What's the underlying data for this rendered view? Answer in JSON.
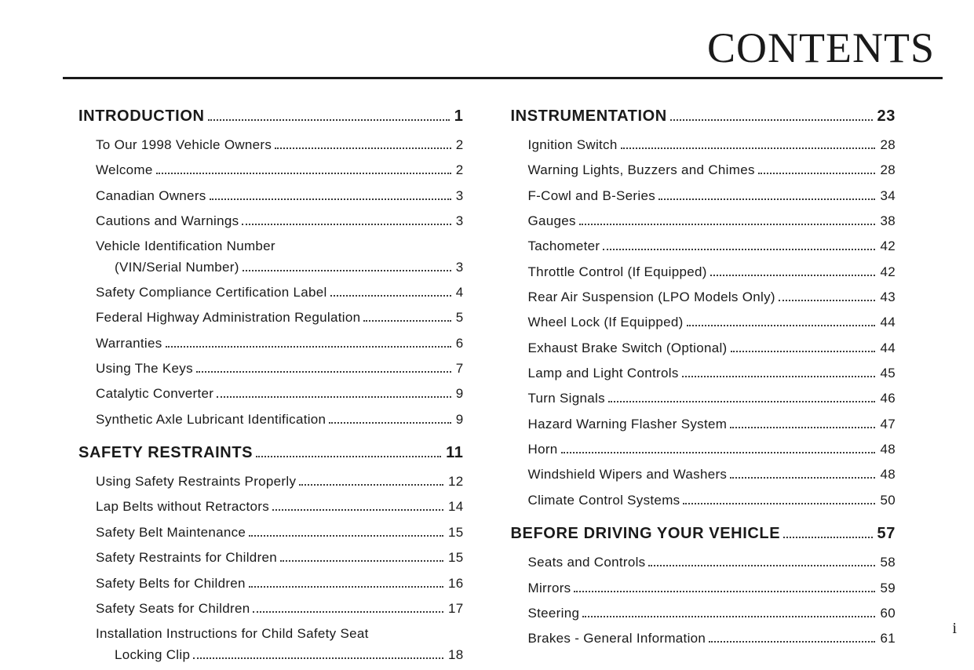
{
  "title": "CONTENTS",
  "folio": "i",
  "left": [
    {
      "type": "section",
      "label": "INTRODUCTION",
      "page": "1"
    },
    {
      "type": "sub",
      "label": "To Our 1998 Vehicle Owners",
      "page": "2"
    },
    {
      "type": "sub",
      "label": "Welcome",
      "page": "2"
    },
    {
      "type": "sub",
      "label": "Canadian Owners",
      "page": "3"
    },
    {
      "type": "sub",
      "label": "Cautions and Warnings",
      "page": "3"
    },
    {
      "type": "sub",
      "wrap": true,
      "label": "Vehicle Identification Number",
      "label2": "(VIN/Serial Number)",
      "page": "3"
    },
    {
      "type": "sub",
      "label": "Safety Compliance Certification Label",
      "page": "4"
    },
    {
      "type": "sub",
      "label": "Federal Highway Administration Regulation",
      "page": "5"
    },
    {
      "type": "sub",
      "label": "Warranties",
      "page": "6"
    },
    {
      "type": "sub",
      "label": "Using The Keys",
      "page": "7"
    },
    {
      "type": "sub",
      "label": "Catalytic Converter",
      "page": "9"
    },
    {
      "type": "sub",
      "label": "Synthetic Axle Lubricant Identification",
      "page": "9"
    },
    {
      "type": "section",
      "label": "SAFETY RESTRAINTS",
      "page": "11"
    },
    {
      "type": "sub",
      "label": "Using Safety Restraints Properly",
      "page": "12"
    },
    {
      "type": "sub",
      "label": "Lap Belts without Retractors",
      "page": "14"
    },
    {
      "type": "sub",
      "label": "Safety Belt Maintenance",
      "page": "15"
    },
    {
      "type": "sub",
      "label": "Safety Restraints for Children",
      "page": "15"
    },
    {
      "type": "sub",
      "label": "Safety Belts for Children",
      "page": "16"
    },
    {
      "type": "sub",
      "label": "Safety Seats for Children",
      "page": "17"
    },
    {
      "type": "sub",
      "wrap": true,
      "label": "Installation Instructions for Child Safety Seat",
      "label2": "Locking Clip",
      "page": "18"
    }
  ],
  "right": [
    {
      "type": "section",
      "label": "INSTRUMENTATION",
      "page": "23"
    },
    {
      "type": "sub",
      "label": "Ignition Switch",
      "page": "28"
    },
    {
      "type": "sub",
      "label": "Warning Lights, Buzzers and Chimes",
      "page": "28"
    },
    {
      "type": "sub",
      "label": "F-Cowl and B-Series",
      "page": "34"
    },
    {
      "type": "sub",
      "label": "Gauges",
      "page": "38"
    },
    {
      "type": "sub",
      "label": "Tachometer",
      "page": "42"
    },
    {
      "type": "sub",
      "label": "Throttle Control (If Equipped)",
      "page": "42"
    },
    {
      "type": "sub",
      "label": "Rear Air Suspension (LPO Models Only)",
      "page": "43"
    },
    {
      "type": "sub",
      "label": "Wheel Lock (If Equipped)",
      "page": "44"
    },
    {
      "type": "sub",
      "label": "Exhaust Brake Switch (Optional)",
      "page": "44"
    },
    {
      "type": "sub",
      "label": "Lamp and Light Controls",
      "page": "45"
    },
    {
      "type": "sub",
      "label": "Turn Signals",
      "page": "46"
    },
    {
      "type": "sub",
      "label": "Hazard Warning Flasher System",
      "page": "47"
    },
    {
      "type": "sub",
      "label": "Horn",
      "page": "48"
    },
    {
      "type": "sub",
      "label": "Windshield Wipers and Washers",
      "page": "48"
    },
    {
      "type": "sub",
      "label": "Climate Control Systems",
      "page": "50"
    },
    {
      "type": "section",
      "label": "BEFORE DRIVING YOUR VEHICLE",
      "page": "57"
    },
    {
      "type": "sub",
      "label": "Seats and Controls",
      "page": "58"
    },
    {
      "type": "sub",
      "label": "Mirrors",
      "page": "59"
    },
    {
      "type": "sub",
      "label": "Steering",
      "page": "60"
    },
    {
      "type": "sub",
      "label": "Brakes - General Information",
      "page": "61"
    }
  ]
}
